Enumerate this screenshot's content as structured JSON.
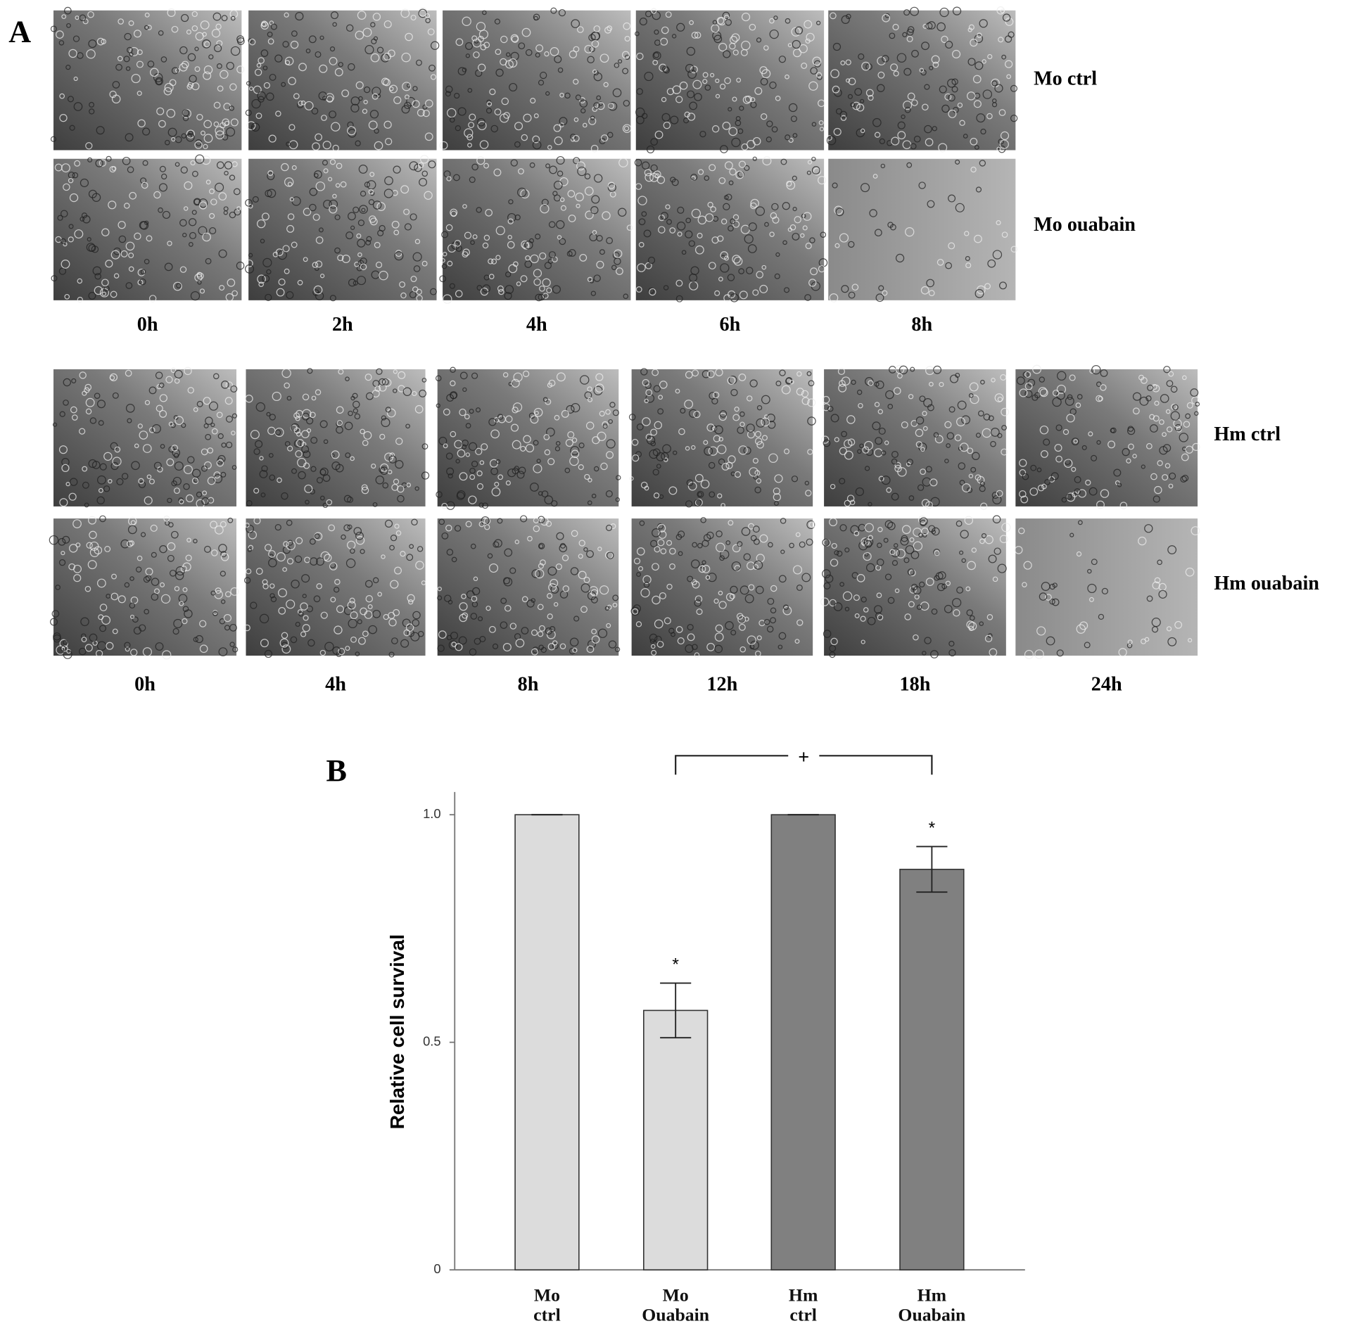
{
  "panel_a": {
    "label": "A",
    "top": {
      "rows": [
        "Mo ctrl",
        "Mo ouabain"
      ],
      "times": [
        "0h",
        "2h",
        "4h",
        "6h",
        "8h"
      ]
    },
    "bottom": {
      "rows": [
        "Hm ctrl",
        "Hm ouabain"
      ],
      "times": [
        "0h",
        "4h",
        "8h",
        "12h",
        "18h",
        "24h"
      ]
    }
  },
  "chart_data": {
    "type": "bar",
    "panel_label": "B",
    "y_label": "Relative cell survival",
    "categories": [
      "Mo ctrl",
      "Mo Ouabain",
      "Hm ctrl",
      "Hm Ouabain"
    ],
    "values": [
      1.0,
      0.57,
      1.0,
      0.88
    ],
    "errors": [
      0,
      0.06,
      0,
      0.05
    ],
    "colors": [
      "#dcdcdc",
      "#dcdcdc",
      "#808080",
      "#808080"
    ],
    "value_annotations": [
      null,
      "*",
      null,
      "*"
    ],
    "comparison": {
      "label": "+",
      "between": [
        "Mo Ouabain",
        "Hm Ouabain"
      ]
    },
    "ylim": [
      0,
      1.05
    ],
    "yticks": [
      0,
      0.5,
      {
        "value": 1,
        "label": "1.0"
      }
    ]
  }
}
